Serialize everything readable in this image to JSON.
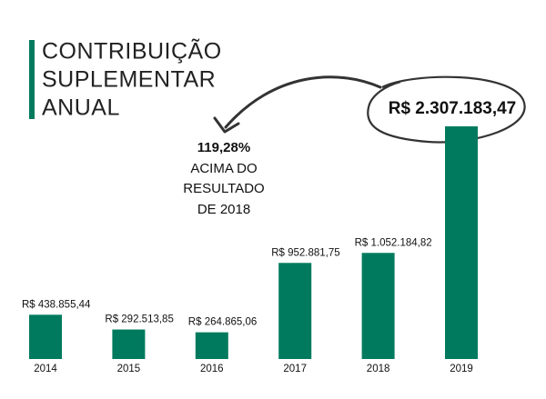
{
  "chart_data": {
    "type": "bar",
    "title": [
      "CONTRIBUIÇÃO",
      "SUPLEMENTAR",
      "ANUAL"
    ],
    "categories": [
      "2014",
      "2015",
      "2016",
      "2017",
      "2018",
      "2019"
    ],
    "values": [
      438855.44,
      292513.85,
      264865.06,
      952881.75,
      1052184.82,
      2307183.47
    ],
    "value_labels": [
      "R$ 438.855,44",
      "R$ 292.513,85",
      "R$ 264.865,06",
      "R$ 952.881,75",
      "R$ 1.052.184,82",
      "R$ 2.307.183,47"
    ],
    "color": "#007a5e",
    "annotation": [
      "119,28%",
      "ACIMA DO",
      "RESULTADO",
      "DE 2018"
    ]
  }
}
